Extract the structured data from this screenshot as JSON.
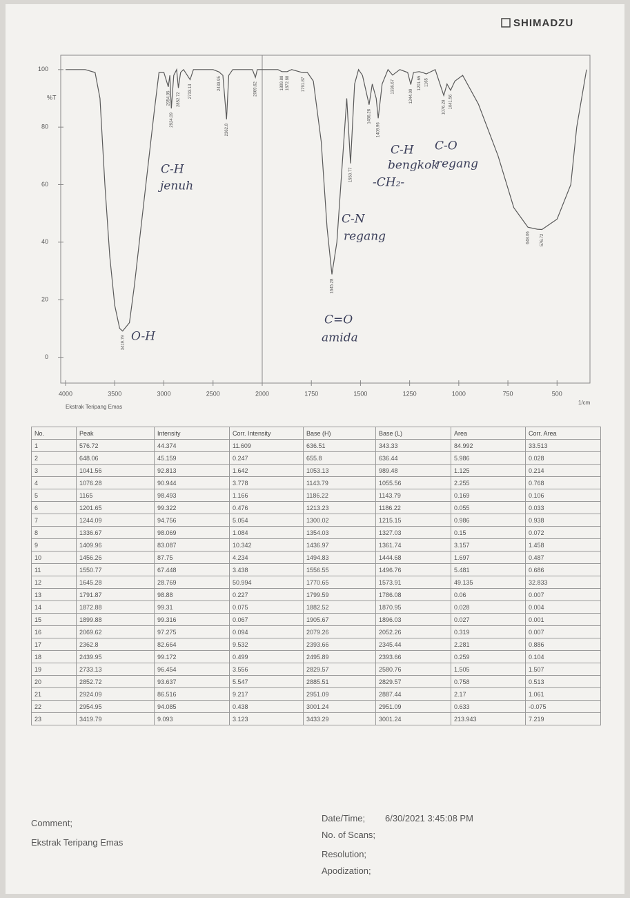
{
  "header": {
    "brand": "SHIMADZU"
  },
  "chart_data": {
    "type": "line",
    "y_label": "%T",
    "x_label": "1/cm",
    "sample_name": "Ekstrak Teripang Emas",
    "color": "#5a5a5a",
    "xlim": [
      4000,
      350
    ],
    "x_scale_break": 2000,
    "xticks": [
      4000,
      3500,
      3000,
      2500,
      2000,
      1750,
      1500,
      1250,
      1000,
      750,
      500
    ],
    "ylim": [
      -9,
      105
    ],
    "yticks": [
      0,
      20,
      40,
      60,
      80,
      100
    ],
    "x": [
      4000,
      3800,
      3700,
      3650,
      3600,
      3550,
      3500,
      3450,
      3419.79,
      3350,
      3300,
      3200,
      3100,
      3050,
      3000,
      2954.95,
      2940,
      2924.09,
      2900,
      2870,
      2852.72,
      2830,
      2800,
      2733.13,
      2700,
      2500,
      2439.95,
      2400,
      2362.8,
      2340,
      2300,
      2100,
      2069.62,
      2050,
      1920,
      1899.88,
      1872.88,
      1850,
      1791.87,
      1770,
      1740,
      1700,
      1670,
      1645.28,
      1620,
      1590,
      1570,
      1550.77,
      1530,
      1510,
      1490,
      1456.26,
      1440,
      1420,
      1409.96,
      1390,
      1360,
      1336.67,
      1300,
      1260,
      1244.09,
      1230,
      1201.65,
      1185,
      1165,
      1150,
      1120,
      1076.28,
      1060,
      1041.56,
      1020,
      980,
      900,
      800,
      720,
      648.06,
      600,
      576.72,
      500,
      430,
      400,
      350
    ],
    "values": [
      100,
      100,
      99,
      90,
      60,
      35,
      18,
      10,
      9.1,
      12,
      25,
      55,
      85,
      99,
      99,
      94,
      98,
      86.5,
      98,
      100,
      93.6,
      99,
      100,
      96.5,
      100,
      100,
      99.2,
      98,
      82.7,
      98,
      100,
      100,
      97.3,
      100,
      100,
      99.3,
      99.3,
      100,
      98.9,
      99,
      96,
      75,
      45,
      28.8,
      40,
      70,
      90,
      67.4,
      95,
      100,
      98,
      87.8,
      95,
      90,
      83.1,
      95,
      100,
      98.1,
      100,
      99,
      94.8,
      99,
      99.3,
      99,
      98.5,
      99,
      100,
      91,
      95,
      92.8,
      96,
      98,
      88,
      70,
      52,
      45.2,
      44.5,
      44.4,
      48,
      60,
      80,
      100
    ],
    "annotations": [
      "O-H",
      "C-H",
      "jenuh",
      "C=O",
      "amida",
      "C-N",
      "regang",
      "-CH₂-",
      "C-H",
      "bengkok",
      "C-O",
      "regang"
    ]
  },
  "table": {
    "columns": [
      "No.",
      "Peak",
      "Intensity",
      "Corr. Intensity",
      "Base (H)",
      "Base (L)",
      "Area",
      "Corr. Area"
    ],
    "rows": [
      [
        1,
        576.72,
        44.374,
        11.609,
        636.51,
        343.33,
        84.992,
        33.513
      ],
      [
        2,
        648.06,
        45.159,
        0.247,
        655.8,
        636.44,
        5.986,
        0.028
      ],
      [
        3,
        1041.56,
        92.813,
        1.642,
        1053.13,
        989.48,
        1.125,
        0.214
      ],
      [
        4,
        1076.28,
        90.944,
        3.778,
        1143.79,
        1055.56,
        2.255,
        0.768
      ],
      [
        5,
        1165,
        98.493,
        1.166,
        1186.22,
        1143.79,
        0.169,
        0.106
      ],
      [
        6,
        1201.65,
        99.322,
        0.476,
        1213.23,
        1186.22,
        0.055,
        0.033
      ],
      [
        7,
        1244.09,
        94.756,
        5.054,
        1300.02,
        1215.15,
        0.986,
        0.938
      ],
      [
        8,
        1336.67,
        98.069,
        1.084,
        1354.03,
        1327.03,
        0.15,
        0.072
      ],
      [
        9,
        1409.96,
        83.087,
        10.342,
        1436.97,
        1361.74,
        3.157,
        1.458
      ],
      [
        10,
        1456.26,
        87.75,
        4.234,
        1494.83,
        1444.68,
        1.697,
        0.487
      ],
      [
        11,
        1550.77,
        67.448,
        3.438,
        1556.55,
        1496.76,
        5.481,
        0.686
      ],
      [
        12,
        1645.28,
        28.769,
        50.994,
        1770.65,
        1573.91,
        49.135,
        32.833
      ],
      [
        13,
        1791.87,
        98.88,
        0.227,
        1799.59,
        1786.08,
        0.06,
        0.007
      ],
      [
        14,
        1872.88,
        99.31,
        0.075,
        1882.52,
        1870.95,
        0.028,
        0.004
      ],
      [
        15,
        1899.88,
        99.316,
        0.067,
        1905.67,
        1896.03,
        0.027,
        0.001
      ],
      [
        16,
        2069.62,
        97.275,
        0.094,
        2079.26,
        2052.26,
        0.319,
        0.007
      ],
      [
        17,
        2362.8,
        82.664,
        9.532,
        2393.66,
        2345.44,
        2.281,
        0.886
      ],
      [
        18,
        2439.95,
        99.172,
        0.499,
        2495.89,
        2393.66,
        0.259,
        0.104
      ],
      [
        19,
        2733.13,
        96.454,
        3.556,
        2829.57,
        2580.76,
        1.505,
        1.507
      ],
      [
        20,
        2852.72,
        93.637,
        5.547,
        2885.51,
        2829.57,
        0.758,
        0.513
      ],
      [
        21,
        2924.09,
        86.516,
        9.217,
        2951.09,
        2887.44,
        2.17,
        1.061
      ],
      [
        22,
        2954.95,
        94.085,
        0.438,
        3001.24,
        2951.09,
        0.633,
        -0.075
      ],
      [
        23,
        3419.79,
        9.093,
        3.123,
        3433.29,
        3001.24,
        213.943,
        7.219
      ]
    ]
  },
  "footer": {
    "comment_label": "Comment;",
    "comment": "Ekstrak Teripang Emas",
    "datetime_label": "Date/Time;",
    "datetime": "6/30/2021 3:45:08 PM",
    "scans_label": "No. of Scans;",
    "resolution_label": "Resolution;",
    "apodization_label": "Apodization;"
  }
}
